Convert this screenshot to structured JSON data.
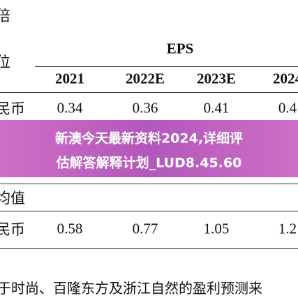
{
  "header": {
    "corner": "倍",
    "unit_label": "位",
    "group": "EPS",
    "columns": [
      "2021",
      "2022E",
      "2023E",
      "2024"
    ]
  },
  "table": {
    "rows": [
      [
        "民币",
        "0.34",
        "0.36",
        "0.41",
        "0.4"
      ]
    ],
    "section": "均值",
    "section_rows": [
      [
        "民币",
        "0.58",
        "0.77",
        "1.05",
        "1.2"
      ]
    ]
  },
  "footnote": "于时尚、百隆东方及浙江自然的盈利预测来",
  "banner": {
    "lines": [
      "新澳今天最新资料2024,详细评",
      "估解答解释计划_LUD8.45.60"
    ]
  }
}
